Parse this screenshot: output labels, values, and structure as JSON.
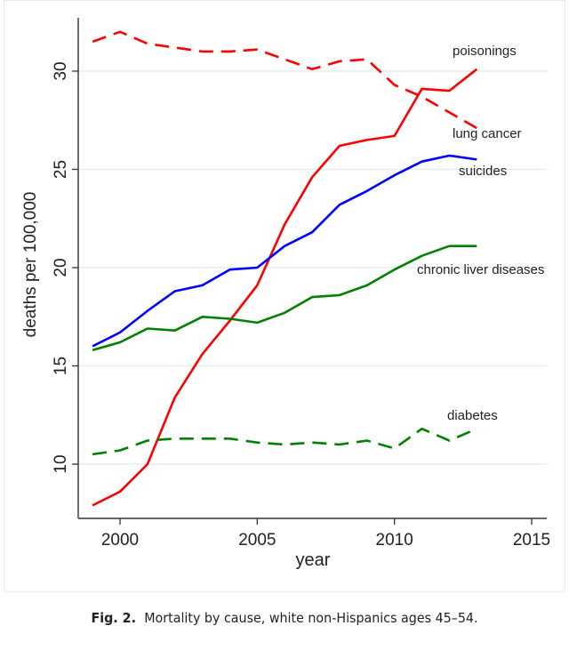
{
  "chart_data": {
    "type": "line",
    "xlabel": "year",
    "ylabel": "deaths per 100,000",
    "xlim": [
      1998.5,
      2015.5
    ],
    "ylim": [
      7.2,
      33.0
    ],
    "xticks": [
      2000,
      2005,
      2010,
      2015
    ],
    "yticks": [
      10,
      15,
      20,
      25,
      30
    ],
    "grid": "horizontal",
    "legend": "inline labels at line ends",
    "x": [
      1999,
      2000,
      2001,
      2002,
      2003,
      2004,
      2005,
      2006,
      2007,
      2008,
      2009,
      2010,
      2011,
      2012,
      2013
    ],
    "series": [
      {
        "name": "poisonings",
        "color": "#ff0000",
        "dash": "solid",
        "values": [
          7.9,
          8.6,
          10.0,
          13.4,
          15.6,
          17.3,
          19.1,
          22.2,
          24.6,
          26.2,
          26.5,
          26.7,
          29.1,
          29.0,
          30.1
        ]
      },
      {
        "name": "lung cancer",
        "color": "#ff0000",
        "dash": "dashed",
        "values": [
          31.5,
          32.0,
          31.4,
          31.2,
          31.0,
          31.0,
          31.1,
          30.6,
          30.1,
          30.5,
          30.6,
          29.3,
          28.7,
          27.9,
          27.1
        ]
      },
      {
        "name": "suicides",
        "color": "#0000ff",
        "dash": "solid",
        "values": [
          16.0,
          16.7,
          17.8,
          18.8,
          19.1,
          19.9,
          20.0,
          21.1,
          21.8,
          23.2,
          23.9,
          24.7,
          25.4,
          25.7,
          25.5
        ]
      },
      {
        "name": "chronic liver diseases",
        "color": "#008000",
        "dash": "solid",
        "values": [
          15.8,
          16.2,
          16.9,
          16.8,
          17.5,
          17.4,
          17.2,
          17.7,
          18.5,
          18.6,
          19.1,
          19.9,
          20.6,
          21.1,
          21.1
        ]
      },
      {
        "name": "diabetes",
        "color": "#008000",
        "dash": "dashed",
        "values": [
          10.5,
          10.7,
          11.2,
          11.3,
          11.3,
          11.3,
          11.1,
          11.0,
          11.1,
          11.0,
          11.2,
          10.8,
          11.8,
          11.2,
          11.8
        ]
      }
    ]
  },
  "caption": {
    "label": "Fig. 2.",
    "text": "Mortality by cause, white non-Hispanics ages 45–54."
  }
}
